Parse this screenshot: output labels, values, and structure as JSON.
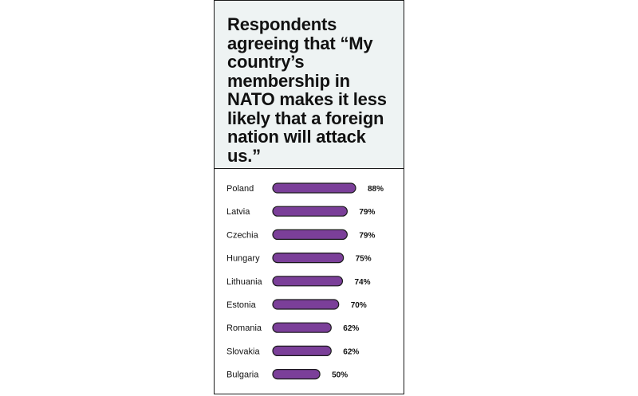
{
  "chart_data": {
    "type": "bar",
    "orientation": "horizontal",
    "title": "Respondents agreeing that “My country’s membership in NATO makes it less likely that a foreign nation will attack us.”",
    "categories": [
      "Poland",
      "Latvia",
      "Czechia",
      "Hungary",
      "Lithuania",
      "Estonia",
      "Romania",
      "Slovakia",
      "Bulgaria"
    ],
    "values": [
      88,
      79,
      79,
      75,
      74,
      70,
      62,
      62,
      50
    ],
    "value_labels": [
      "88%",
      "79%",
      "79%",
      "75%",
      "74%",
      "70%",
      "62%",
      "62%",
      "50%"
    ],
    "unit": "%",
    "xlim": [
      0,
      100
    ],
    "grid": false,
    "bar_color": "#7b3f99",
    "bar_border_color": "#1a1a1a",
    "header_background": "#eef3f3"
  }
}
